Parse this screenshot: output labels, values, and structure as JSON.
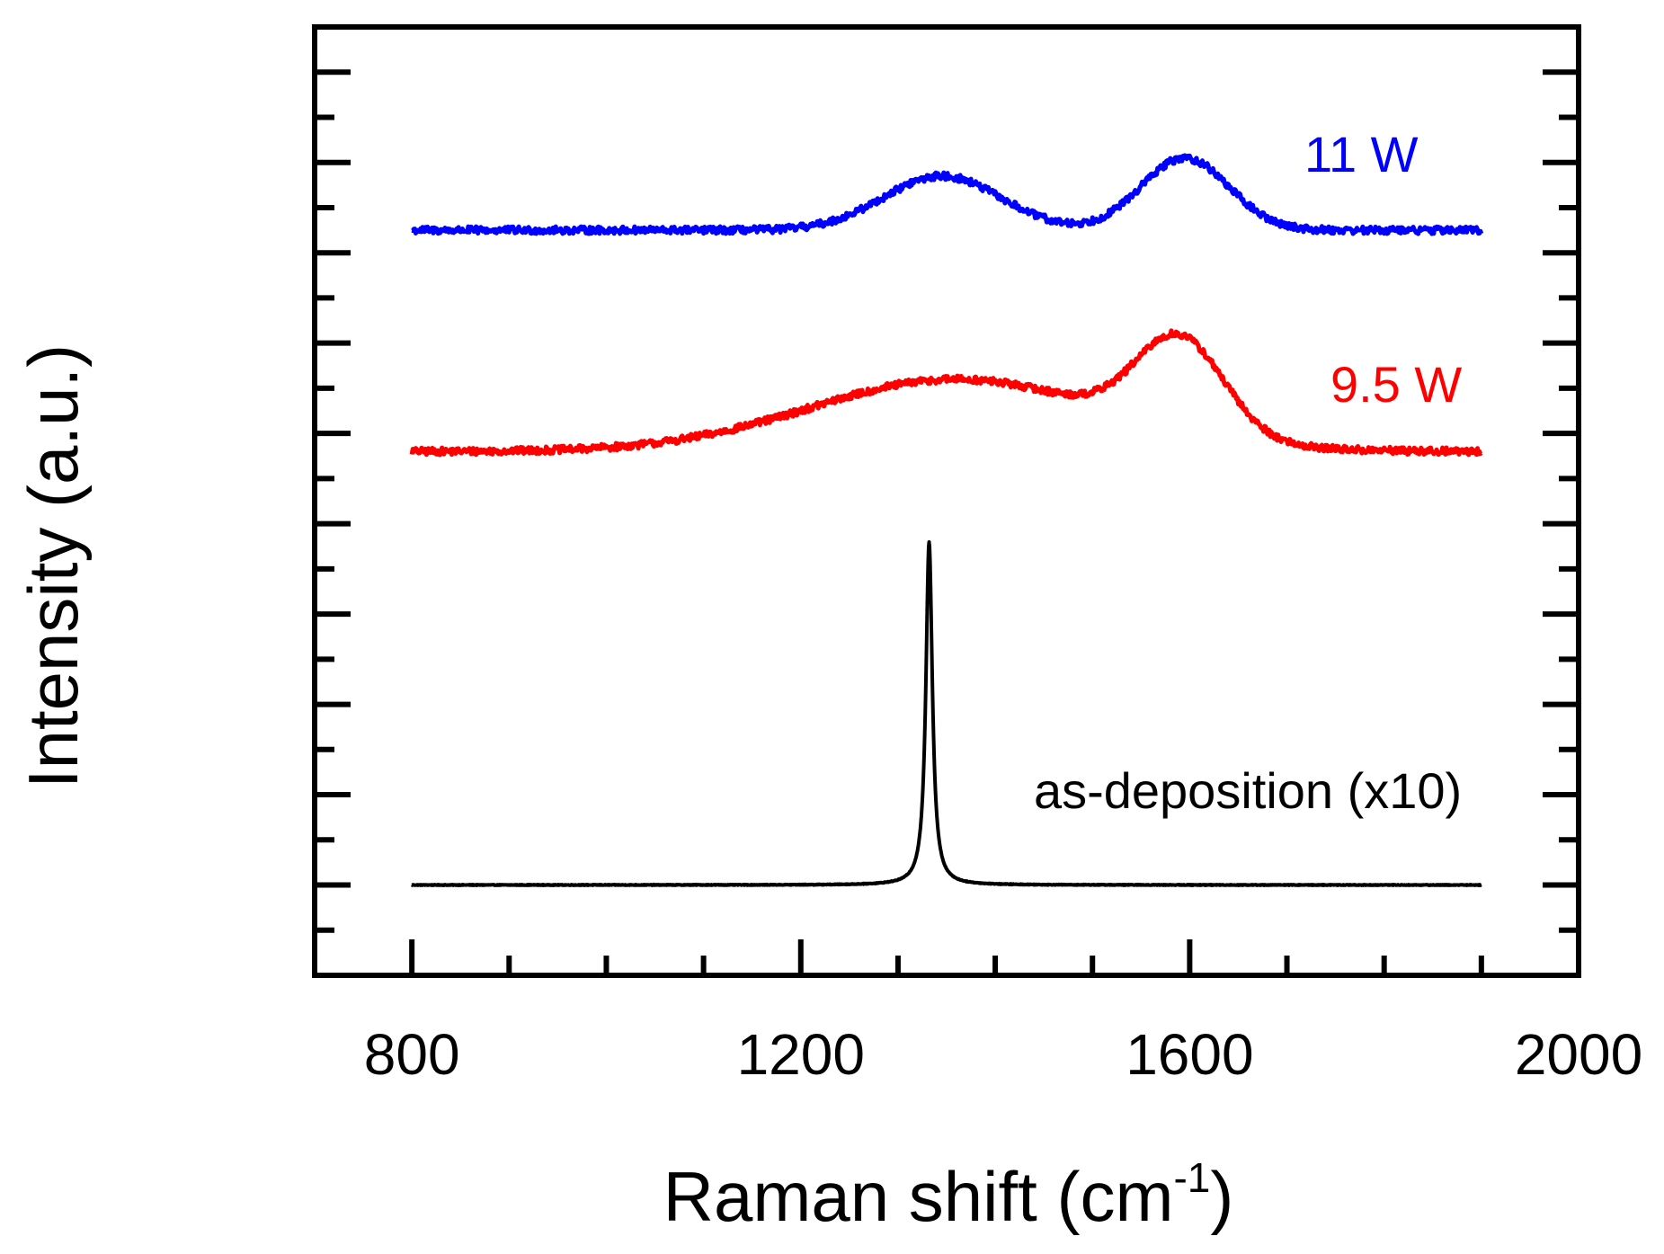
{
  "chart_data": {
    "type": "line",
    "title": "",
    "xlabel": "Raman shift (cm",
    "xlabel_superscript": "-1",
    "xlabel_suffix": ")",
    "ylabel": "Intensity (a.u.)",
    "xlim": [
      700,
      2000
    ],
    "ylim": [
      0,
      10.5
    ],
    "x_ticks": [
      800,
      1200,
      1600,
      2000
    ],
    "x_tick_labels": [
      "800",
      "1200",
      "1600",
      "2000"
    ],
    "x_minor_step": 100,
    "y_ticks": [
      0.5,
      1,
      1.5,
      2,
      2.5,
      3,
      3.5,
      4,
      4.5,
      5,
      5.5,
      6,
      6.5,
      7,
      7.5,
      8,
      8.5,
      9,
      9.5,
      10
    ],
    "y_tick_labels": [],
    "grid": false,
    "series": [
      {
        "name": "as-deposition (x10)",
        "label": "as-deposition (x10)",
        "color": "#000000",
        "x_range": [
          800,
          1900
        ],
        "baseline": 1.0,
        "noise": 0.004,
        "peaks": [
          {
            "center": 1332,
            "height": 3.8,
            "width": 4,
            "shape": "lorentzian"
          }
        ]
      },
      {
        "name": "9.5 W",
        "label": "9.5 W",
        "color": "#ff0000",
        "x_range": [
          800,
          1900
        ],
        "baseline": 5.8,
        "noise": 0.04,
        "peaks": [
          {
            "center": 1360,
            "height": 0.8,
            "width": 150,
            "shape": "gaussian"
          },
          {
            "center": 1590,
            "height": 1.05,
            "width": 45,
            "shape": "gaussian"
          }
        ]
      },
      {
        "name": "11 W",
        "label": "11 W",
        "color": "#0000ff",
        "x_range": [
          800,
          1900
        ],
        "baseline": 8.25,
        "noise": 0.04,
        "peaks": [
          {
            "center": 1345,
            "height": 0.6,
            "width": 60,
            "shape": "gaussian"
          },
          {
            "center": 1595,
            "height": 0.8,
            "width": 45,
            "shape": "gaussian"
          }
        ]
      }
    ]
  }
}
